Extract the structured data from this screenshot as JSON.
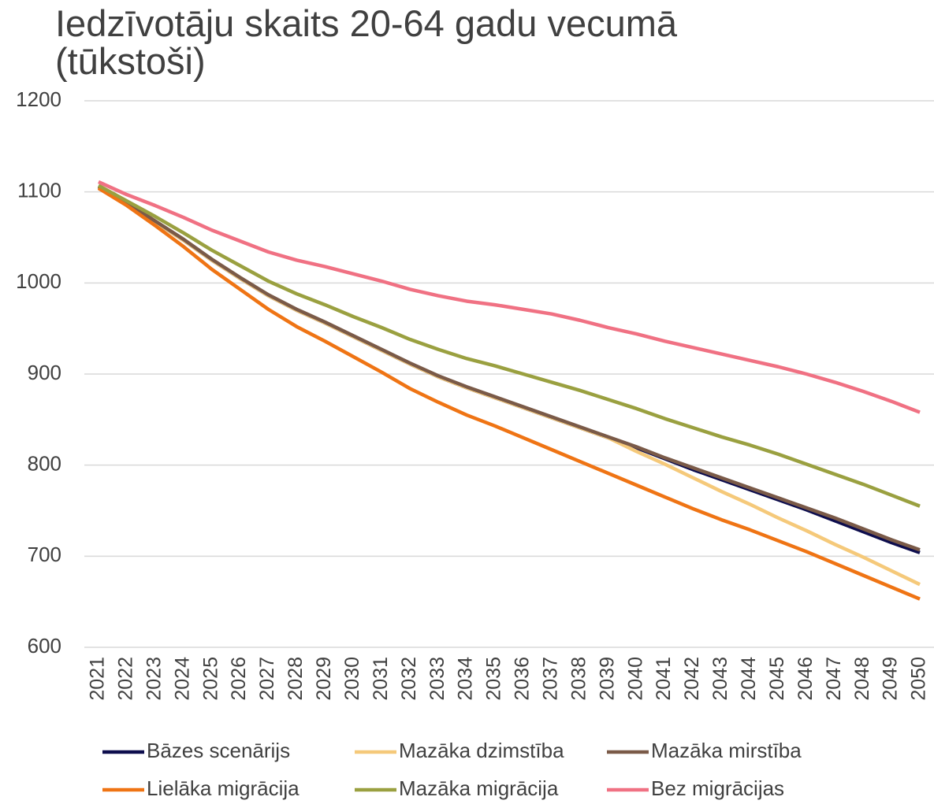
{
  "chart_data": {
    "type": "line",
    "title": "Iedzīvotāju skaits 20-64 gadu vecumā (tūkstoši)",
    "categories": [
      "2021",
      "2022",
      "2023",
      "2024",
      "2025",
      "2026",
      "2027",
      "2028",
      "2029",
      "2030",
      "2031",
      "2032",
      "2033",
      "2034",
      "2035",
      "2036",
      "2037",
      "2038",
      "2039",
      "2040",
      "2041",
      "2042",
      "2043",
      "2044",
      "2045",
      "2046",
      "2047",
      "2048",
      "2049",
      "2050"
    ],
    "series": [
      {
        "name": "Bāzes scenārijs",
        "color": "#0d0d4d",
        "values": [
          1105,
          1087,
          1067,
          1047,
          1025,
          1005,
          986,
          970,
          956,
          941,
          926,
          911,
          897,
          885,
          874,
          863,
          852,
          841,
          830,
          819,
          807,
          795,
          784,
          773,
          762,
          751,
          739,
          727,
          715,
          704
        ]
      },
      {
        "name": "Mazāka dzimstība",
        "color": "#f5c97a",
        "values": [
          1105,
          1087,
          1067,
          1047,
          1025,
          1005,
          986,
          970,
          956,
          941,
          926,
          911,
          897,
          885,
          874,
          863,
          852,
          841,
          830,
          815,
          801,
          786,
          771,
          757,
          742,
          728,
          713,
          699,
          684,
          669
        ]
      },
      {
        "name": "Mazāka mirstība",
        "color": "#7a5a48",
        "values": [
          1106,
          1088,
          1068,
          1048,
          1026,
          1006,
          987,
          971,
          957,
          942,
          927,
          912,
          898,
          886,
          875,
          864,
          853,
          842,
          831,
          820,
          808,
          797,
          786,
          775,
          764,
          753,
          742,
          730,
          718,
          707
        ]
      },
      {
        "name": "Lielāka migrācija",
        "color": "#ef7414",
        "values": [
          1104,
          1085,
          1063,
          1040,
          1015,
          993,
          971,
          952,
          936,
          919,
          902,
          884,
          869,
          855,
          843,
          830,
          817,
          804,
          791,
          778,
          765,
          752,
          740,
          729,
          717,
          705,
          692,
          679,
          666,
          653
        ]
      },
      {
        "name": "Mazāka migrācija",
        "color": "#9aa040",
        "values": [
          1107,
          1090,
          1073,
          1055,
          1036,
          1019,
          1002,
          988,
          976,
          963,
          951,
          938,
          927,
          917,
          909,
          900,
          891,
          882,
          872,
          862,
          851,
          841,
          831,
          822,
          812,
          801,
          790,
          779,
          767,
          755
        ]
      },
      {
        "name": "Bez migrācijas",
        "color": "#f07183",
        "values": [
          1111,
          1097,
          1085,
          1072,
          1058,
          1046,
          1034,
          1025,
          1018,
          1010,
          1002,
          993,
          986,
          980,
          976,
          971,
          966,
          959,
          951,
          944,
          936,
          929,
          922,
          915,
          908,
          900,
          891,
          881,
          870,
          858
        ]
      }
    ],
    "ylim": [
      600,
      1200
    ],
    "yticks": [
      600,
      700,
      800,
      900,
      1000,
      1100,
      1200
    ],
    "grid": true
  }
}
